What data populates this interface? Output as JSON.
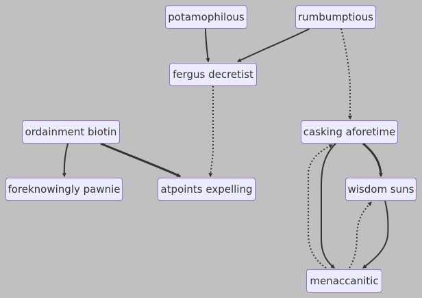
{
  "diagram": {
    "type": "flowchart",
    "colors": {
      "background": "#c0c0c0",
      "node_fill": "#ececff",
      "node_border": "#9370db",
      "text": "#333333",
      "edge": "#333333"
    },
    "nodes": {
      "potamophilous": {
        "label": "potamophilous"
      },
      "rumbumptious": {
        "label": "rumbumptious"
      },
      "fergus_decretist": {
        "label": "fergus decretist"
      },
      "ordainment_biotin": {
        "label": "ordainment biotin"
      },
      "casking_aforetime": {
        "label": "casking aforetime"
      },
      "foreknowingly_pawnie": {
        "label": "foreknowingly pawnie"
      },
      "atpoints_expelling": {
        "label": "atpoints expelling"
      },
      "wisdom_suns": {
        "label": "wisdom suns"
      },
      "menaccanitic": {
        "label": "menaccanitic"
      }
    },
    "edges": [
      {
        "from": "potamophilous",
        "to": "fergus_decretist",
        "style": "solid"
      },
      {
        "from": "rumbumptious",
        "to": "fergus_decretist",
        "style": "solid"
      },
      {
        "from": "rumbumptious",
        "to": "casking_aforetime",
        "style": "dotted"
      },
      {
        "from": "fergus_decretist",
        "to": "atpoints_expelling",
        "style": "dotted"
      },
      {
        "from": "ordainment_biotin",
        "to": "foreknowingly_pawnie",
        "style": "solid"
      },
      {
        "from": "ordainment_biotin",
        "to": "atpoints_expelling",
        "style": "thick"
      },
      {
        "from": "casking_aforetime",
        "to": "wisdom_suns",
        "style": "thick"
      },
      {
        "from": "casking_aforetime",
        "to": "menaccanitic",
        "style": "solid"
      },
      {
        "from": "menaccanitic",
        "to": "casking_aforetime",
        "style": "dotted"
      },
      {
        "from": "wisdom_suns",
        "to": "menaccanitic",
        "style": "solid"
      },
      {
        "from": "menaccanitic",
        "to": "wisdom_suns",
        "style": "dotted"
      }
    ]
  }
}
